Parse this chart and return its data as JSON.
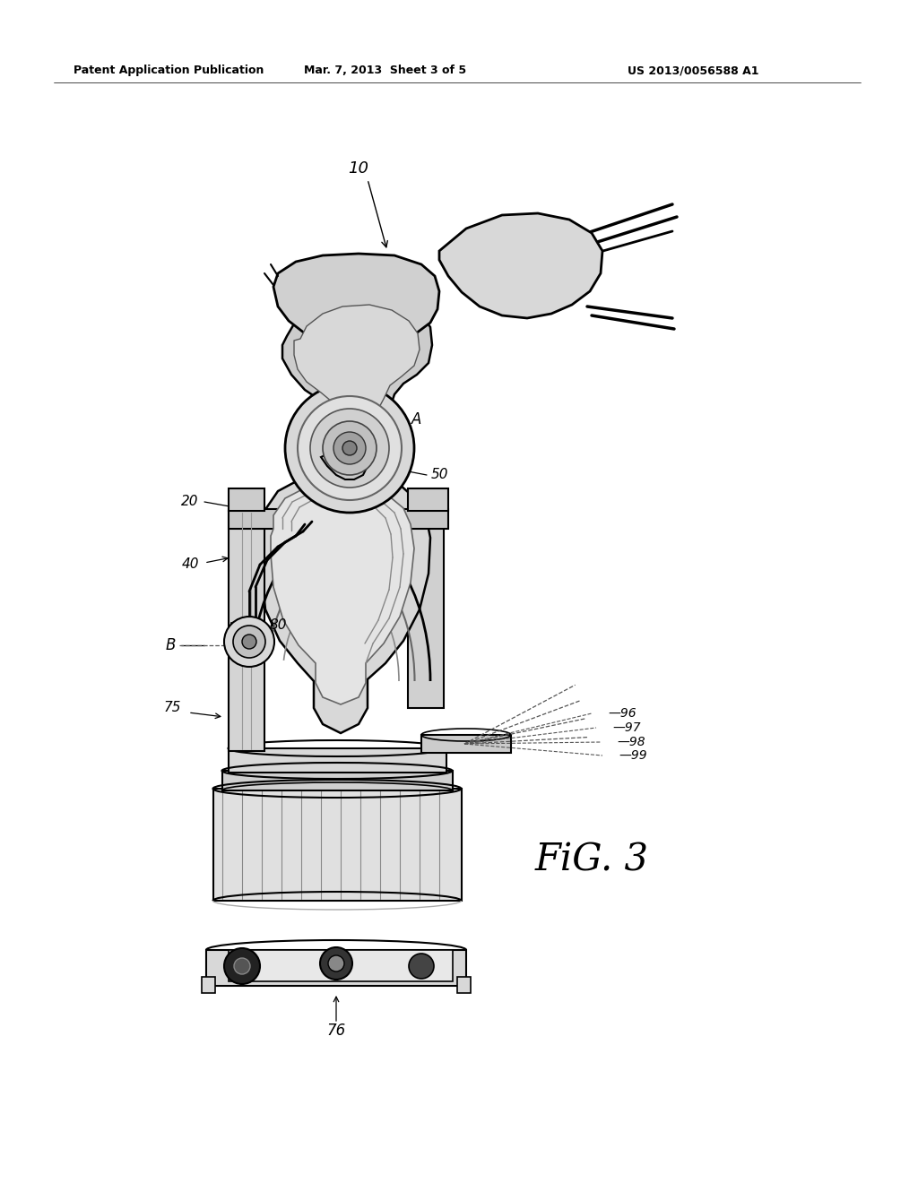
{
  "header_left": "Patent Application Publication",
  "header_mid": "Mar. 7, 2013  Sheet 3 of 5",
  "header_right": "US 2013/0056588 A1",
  "fig_label": "FiG. 3",
  "bg_color": "#ffffff",
  "line_color": "#000000",
  "gray_light": "#d8d8d8",
  "gray_med": "#b0b0b0",
  "gray_dark": "#888888"
}
